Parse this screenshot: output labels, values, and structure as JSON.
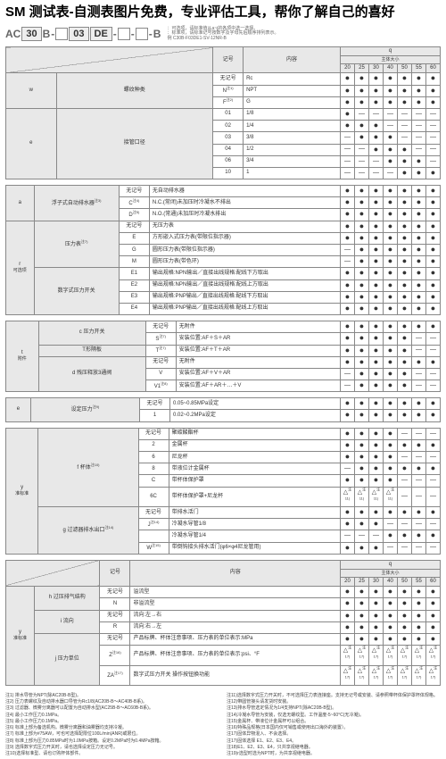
{
  "title": "SM 测试表-自测表图片免费，专业评估工具，帮你了解自己的喜好",
  "partnum": {
    "segs": [
      "AC",
      "30",
      "B",
      "-",
      "",
      "03",
      "DE",
      "-",
      "",
      "-",
      "",
      "-",
      "B"
    ],
    "boxed": [
      1,
      4,
      5,
      6,
      8,
      10
    ],
    "note1": "：可选项，请标准值从a~j的各项中选一选择。",
    "note2": "：标准项，请标准记号按数字及字母先后顺序排列表示。",
    "note3": "例 C30B-F03DE1-SV-12NR-B"
  },
  "hdr": {
    "sym": "记号",
    "content": "内容",
    "q": "q",
    "body": "主体大小"
  },
  "qcols": [
    "20",
    "25",
    "30",
    "40",
    "50",
    "55",
    "60"
  ],
  "dot": "●",
  "dash": "—",
  "tri": "△",
  "groups": [
    {
      "id": "w",
      "side": "w",
      "label": "螺纹种类",
      "rows": [
        {
          "code": "无记号",
          "desc": "Rc",
          "m": [
            1,
            1,
            1,
            1,
            1,
            1,
            1
          ]
        },
        {
          "code": "N",
          "sup": "注1)",
          "desc": "NPT",
          "m": [
            1,
            1,
            1,
            1,
            1,
            1,
            1
          ]
        },
        {
          "code": "F",
          "sup": "注2)",
          "desc": "G",
          "m": [
            1,
            1,
            1,
            1,
            1,
            1,
            1
          ]
        }
      ]
    },
    {
      "id": "e",
      "side": "e",
      "label": "接管口径",
      "rows": [
        {
          "code": "01",
          "desc": "1/8",
          "m": [
            1,
            0,
            0,
            0,
            0,
            0,
            0
          ]
        },
        {
          "code": "02",
          "desc": "1/4",
          "m": [
            1,
            1,
            1,
            0,
            0,
            0,
            0
          ]
        },
        {
          "code": "03",
          "desc": "3/8",
          "m": [
            0,
            1,
            1,
            1,
            0,
            0,
            0
          ]
        },
        {
          "code": "04",
          "desc": "1/2",
          "m": [
            0,
            0,
            1,
            1,
            1,
            0,
            0
          ]
        },
        {
          "code": "06",
          "desc": "3/4",
          "m": [
            0,
            0,
            0,
            1,
            1,
            1,
            0
          ]
        },
        {
          "code": "10",
          "desc": "1",
          "m": [
            0,
            0,
            0,
            0,
            1,
            1,
            1
          ]
        }
      ]
    },
    {
      "id": "r1",
      "side": "a",
      "label": "浮子式自动排水器",
      "sub": "注3)",
      "rows": [
        {
          "code": "无记号",
          "desc": "无自动排水器",
          "m": [
            1,
            1,
            1,
            1,
            1,
            1,
            1
          ]
        },
        {
          "code": "C",
          "sup": "注4)",
          "desc": "N.C.(常闭)未加压时冷凝水不排出",
          "m": [
            1,
            1,
            1,
            1,
            1,
            1,
            1
          ]
        },
        {
          "code": "D",
          "sup": "注5)",
          "desc": "N.O.(常通)未加压时冷凝水排出",
          "m": [
            1,
            1,
            1,
            1,
            1,
            1,
            1
          ]
        }
      ]
    },
    {
      "id": "r2",
      "side": "r",
      "sidelbl": "可选项",
      "label_top": "压力表",
      "sub_top": "注7)",
      "label_bot": "数字式压力开关",
      "rows": [
        {
          "grp": "top",
          "code": "无记号",
          "desc": "无压力表",
          "m": [
            1,
            1,
            1,
            1,
            1,
            1,
            1
          ]
        },
        {
          "grp": "top",
          "code": "E",
          "desc": "方形嵌入式压力表(带限位指示器)",
          "m": [
            1,
            1,
            1,
            1,
            1,
            1,
            1
          ]
        },
        {
          "grp": "top",
          "code": "G",
          "desc": "圆形压力表(带限位指示器)",
          "m": [
            0,
            1,
            1,
            1,
            1,
            1,
            1
          ]
        },
        {
          "grp": "top",
          "code": "M",
          "desc": "圆形压力表(带色环)",
          "m": [
            0,
            1,
            1,
            1,
            1,
            1,
            1
          ]
        },
        {
          "grp": "bot",
          "code": "E1",
          "desc": "输出规格:NPN输出／直接出线规格:配线下方取出",
          "m": [
            1,
            1,
            1,
            1,
            1,
            1,
            1
          ]
        },
        {
          "grp": "bot",
          "code": "E2",
          "desc": "输出规格:NPN输出／直接出线规格:配线上方取出",
          "m": [
            1,
            1,
            1,
            1,
            1,
            1,
            1
          ]
        },
        {
          "grp": "bot",
          "code": "E3",
          "desc": "输出规格:PNP输出／直接出线规格:配线下方取出",
          "m": [
            1,
            1,
            1,
            1,
            1,
            1,
            1
          ]
        },
        {
          "grp": "bot",
          "code": "E4",
          "desc": "输出规格:PNP输出／直接出线规格:配线上方取出",
          "m": [
            1,
            1,
            1,
            1,
            1,
            1,
            1
          ]
        }
      ]
    },
    {
      "id": "t",
      "side": "t",
      "sidelbl": "附件",
      "label_c": "压力开关",
      "label_s": "T形隔板",
      "label_d": "残压释放3通阀",
      "rows": [
        {
          "grp": "c",
          "code": "无记号",
          "desc": "无附件",
          "m": [
            1,
            1,
            1,
            1,
            1,
            1,
            1
          ]
        },
        {
          "grp": "c",
          "code": "S",
          "sup": "注7)",
          "desc": "安装位置:AF＋S＋AR",
          "m": [
            1,
            1,
            1,
            1,
            1,
            0,
            0
          ]
        },
        {
          "grp": "s",
          "code": "T",
          "sup": "注7)",
          "desc": "安装位置:AF＋T＋AR",
          "m": [
            1,
            1,
            1,
            1,
            1,
            0,
            0
          ]
        },
        {
          "grp": "d",
          "code": "无记号",
          "desc": "无附件",
          "m": [
            1,
            1,
            1,
            1,
            1,
            1,
            1
          ]
        },
        {
          "grp": "d",
          "code": "V",
          "desc": "安装位置:AF＋V＋AR",
          "m": [
            0,
            1,
            1,
            1,
            1,
            0,
            0
          ]
        },
        {
          "grp": "d",
          "code": "V1",
          "sup": "注8)",
          "desc": "安装位置:AF＋AR＋…＋V",
          "m": [
            0,
            1,
            1,
            1,
            1,
            0,
            0
          ]
        }
      ]
    },
    {
      "id": "ee",
      "side": "e",
      "label": "设定压力",
      "sub": "注9)",
      "rows": [
        {
          "code": "无记号",
          "desc": "0.05~0.85MPa设定",
          "m": [
            1,
            1,
            1,
            1,
            1,
            1,
            1
          ]
        },
        {
          "code": "1",
          "desc": "0.02~0.2MPa设定",
          "m": [
            1,
            1,
            1,
            1,
            1,
            1,
            1
          ]
        }
      ]
    },
    {
      "id": "y",
      "side": "y",
      "sidelbl": "准标准",
      "label_f": "杯体",
      "sub_f": "注10)",
      "label_g": "过滤器排水出口",
      "sub_g": "注14)",
      "rows": [
        {
          "grp": "f",
          "code": "无记号",
          "desc": "聚碳酸酯杯",
          "m": [
            1,
            1,
            1,
            1,
            0,
            0,
            0
          ]
        },
        {
          "grp": "f",
          "code": "2",
          "desc": "金属杯",
          "m": [
            1,
            1,
            1,
            1,
            1,
            1,
            1
          ]
        },
        {
          "grp": "f",
          "code": "6",
          "desc": "尼龙杯",
          "m": [
            1,
            1,
            1,
            1,
            0,
            0,
            0
          ]
        },
        {
          "grp": "f",
          "code": "8",
          "desc": "带液位计金属杯",
          "m": [
            0,
            1,
            1,
            1,
            1,
            1,
            1
          ]
        },
        {
          "grp": "f",
          "code": "C",
          "desc": "带杯体保护罩",
          "m": [
            1,
            1,
            1,
            1,
            0,
            0,
            0
          ]
        },
        {
          "grp": "f",
          "code": "6C",
          "desc": "带杯体保护罩+尼龙杯",
          "m": [
            2,
            2,
            2,
            2,
            0,
            0,
            0
          ],
          "trisup": "注11)"
        },
        {
          "grp": "g",
          "code": "无记号",
          "desc": "带排水活门",
          "m": [
            1,
            1,
            1,
            1,
            1,
            1,
            1
          ]
        },
        {
          "grp": "g",
          "code": "J",
          "sup": "注14)",
          "desc": "冷凝水导管1/8",
          "m": [
            1,
            1,
            1,
            0,
            0,
            0,
            0
          ]
        },
        {
          "grp": "g",
          "code": "",
          "sup": "",
          "desc": "冷凝水导管1/4",
          "m": [
            0,
            0,
            0,
            1,
            1,
            1,
            1
          ]
        },
        {
          "grp": "g",
          "code": "W",
          "sup": "注15)",
          "desc": "带倒钩接头排水活门(φ6×φ4尼龙管用)",
          "m": [
            1,
            1,
            1,
            0,
            0,
            0,
            0
          ]
        }
      ]
    }
  ],
  "table2": {
    "side": "y",
    "sidelbl": "准标准",
    "sections": [
      {
        "id": "h",
        "label": "过压排气结构",
        "rows": [
          {
            "code": "无记号",
            "desc": "溢流型",
            "m": [
              1,
              1,
              1,
              1,
              1,
              1,
              1
            ]
          },
          {
            "code": "N",
            "desc": "非溢流型",
            "m": [
              1,
              1,
              1,
              1,
              1,
              1,
              1
            ]
          }
        ]
      },
      {
        "id": "i",
        "label": "流向",
        "rows": [
          {
            "code": "无记号",
            "desc": "流向:左→右",
            "m": [
              1,
              1,
              1,
              1,
              1,
              1,
              1
            ]
          },
          {
            "code": "R",
            "desc": "流向:右→左",
            "m": [
              1,
              1,
              1,
              1,
              1,
              1,
              1
            ]
          }
        ]
      },
      {
        "id": "j",
        "label": "压力单位",
        "rows": [
          {
            "code": "无记号",
            "desc": "产品标牌、杯体注意事项、压力表的单位表示:MPa",
            "m": [
              1,
              1,
              1,
              1,
              1,
              1,
              1
            ]
          },
          {
            "code": "Z",
            "sup": "注16)",
            "desc": "产品标牌、杯体注意事项、压力表的单位表示:psi、°F",
            "m": [
              2,
              2,
              2,
              2,
              2,
              2,
              2
            ],
            "trisup": "注17)"
          },
          {
            "code": "ZA",
            "sup": "注17)",
            "desc": "数字式压力开关 操作按钮换功能",
            "m": [
              2,
              2,
              2,
              2,
              2,
              2,
              2
            ],
            "trisup": "注17)"
          }
        ]
      }
    ]
  },
  "notes": [
    "注1) 排水导管为NPT(除AC20B-B型)。",
    "注2) 压力表螺纹及自动排水器口导管为Rc1/8(AC20B-B～AC40B-B系)。",
    "注3) 过滤器、微雾分离器可以配置为自动排水型(AC25B-B～AC60B-B系)。",
    "注4) 最小工作压力0.1MPa。",
    "注5) 最小工作压力0.1MPa。",
    "注6) 标准上部为备选机构。微雾分离器和油雾器均支持冷凝。",
    "注7) 标准上部为#75AW，可也可选择配限位100L/min(ANR)或限位。",
    "注8) 标准上部为压力0.85MPa时为1.0MPa按箱。设定0.2MPa时为0.4MPa按箱。",
    "注9) 选择数字式压力开关时，请也选择设定压力无记号。",
    "注10)选择标准型、请也订购杯体部件。",
    "注11)选择数字式压力开关时，不可选择压力表连接座。支持无记号或安装、请参照带杯体保护罩杯体规格。",
    "注12)带圆管接头请发货时安装。",
    "注13)排水导管选定情况为1/4支持NPT(除AC20B-B型)。",
    "注14)冷凝水导管为安装，仅选无螺纹型。工作温度-5~60°C(无冷凝)。",
    "注15)金属杯、带液位计金属杯可以组合。",
    "注16)特殊品规格(日本国内仅可销售或使用出口海外的装置）。",
    "注17)固体异物混入、不会选择。",
    "注17)固体选择 E1、E2、E3、E4。",
    "注18)E1、E2、E3、E4，只共享视继电器。",
    "注19)r选型时选为NPT时，为共享视继电器。"
  ]
}
